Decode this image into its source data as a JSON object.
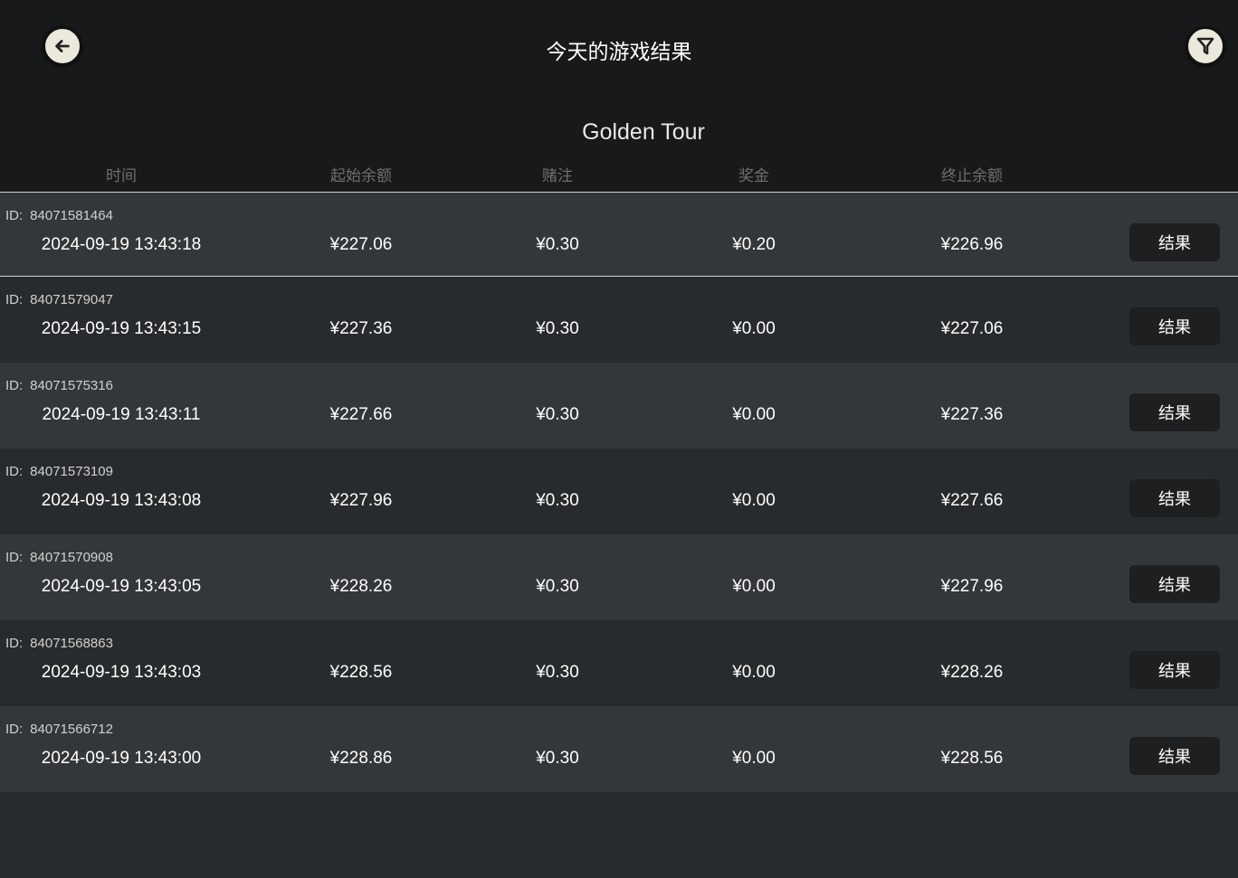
{
  "header": {
    "title": "今天的游戏结果",
    "back_icon": "arrow-left-icon",
    "filter_icon": "filter-icon"
  },
  "game_name": "Golden Tour",
  "columns": [
    "时间",
    "起始余额",
    "赌注",
    "奖金",
    "终止余额"
  ],
  "id_label": "ID:",
  "button_label": "结果",
  "rows": [
    {
      "id": "84071581464",
      "time": "2024-09-19 13:43:18",
      "start": "¥227.06",
      "bet": "¥0.30",
      "win": "¥0.20",
      "end": "¥226.96"
    },
    {
      "id": "84071579047",
      "time": "2024-09-19 13:43:15",
      "start": "¥227.36",
      "bet": "¥0.30",
      "win": "¥0.00",
      "end": "¥227.06"
    },
    {
      "id": "84071575316",
      "time": "2024-09-19 13:43:11",
      "start": "¥227.66",
      "bet": "¥0.30",
      "win": "¥0.00",
      "end": "¥227.36"
    },
    {
      "id": "84071573109",
      "time": "2024-09-19 13:43:08",
      "start": "¥227.96",
      "bet": "¥0.30",
      "win": "¥0.00",
      "end": "¥227.66"
    },
    {
      "id": "84071570908",
      "time": "2024-09-19 13:43:05",
      "start": "¥228.26",
      "bet": "¥0.30",
      "win": "¥0.00",
      "end": "¥227.96"
    },
    {
      "id": "84071568863",
      "time": "2024-09-19 13:43:03",
      "start": "¥228.56",
      "bet": "¥0.30",
      "win": "¥0.00",
      "end": "¥228.26"
    },
    {
      "id": "84071566712",
      "time": "2024-09-19 13:43:00",
      "start": "¥228.86",
      "bet": "¥0.30",
      "win": "¥0.00",
      "end": "¥228.56"
    }
  ]
}
